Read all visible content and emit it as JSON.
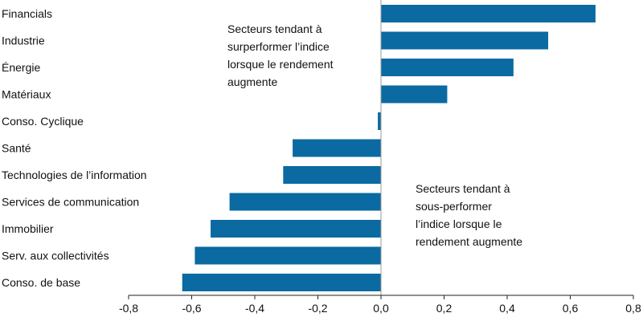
{
  "chart_data": {
    "type": "bar",
    "orientation": "horizontal",
    "categories": [
      "Financials",
      "Industrie",
      "Énergie",
      "Matériaux",
      "Conso. Cyclique",
      "Santé",
      "Technologies de l’information",
      "Services de communication",
      "Immobilier",
      "Serv. aux collectivités",
      "Conso. de base"
    ],
    "values": [
      0.68,
      0.53,
      0.42,
      0.21,
      -0.01,
      -0.28,
      -0.31,
      -0.48,
      -0.54,
      -0.59,
      -0.63
    ],
    "xlim": [
      -0.8,
      0.8
    ],
    "x_ticks": [
      -0.8,
      -0.6,
      -0.4,
      -0.2,
      0.0,
      0.2,
      0.4,
      0.6,
      0.8
    ],
    "x_tick_labels": [
      "-0,8",
      "-0,6",
      "-0,4",
      "-0,2",
      "0,0",
      "0,2",
      "0,4",
      "0,6",
      "0,8"
    ],
    "title": "",
    "xlabel": "",
    "ylabel": "",
    "grid": false,
    "colors": {
      "bar": "#0a6aa1",
      "axis": "#222222",
      "text": "#111111"
    },
    "annotations": [
      {
        "lines": [
          "Secteurs tendant à",
          "surperformer l’indice",
          "lorsque le rendement",
          "augmente"
        ]
      },
      {
        "lines": [
          "Secteurs tendant à",
          "sous-performer",
          "l’indice lorsque le",
          "rendement augmente"
        ]
      }
    ]
  }
}
